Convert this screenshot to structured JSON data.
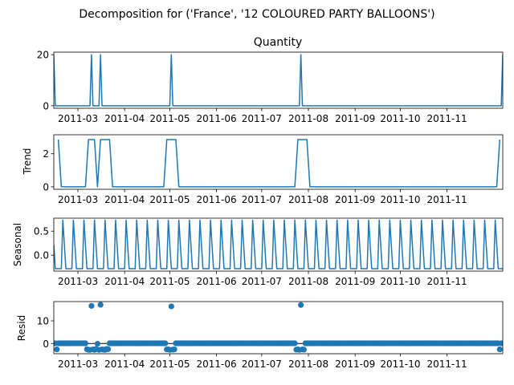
{
  "figure": {
    "suptitle": "Decomposition for ('France', '12 COLOURED PARTY BALLOONS')"
  },
  "colors": {
    "line": "#1f77b4",
    "marker": "#1f77b4",
    "axis": "#000000",
    "background": "#ffffff"
  },
  "chart_data": [
    {
      "type": "line",
      "title": "Quantity",
      "ylabel": "",
      "xlim": [
        "2011-02-13",
        "2011-12-08"
      ],
      "ylim": [
        -1,
        21
      ],
      "yticks": [
        0,
        20
      ],
      "xticks": [
        "2011-03",
        "2011-04",
        "2011-05",
        "2011-06",
        "2011-07",
        "2011-08",
        "2011-09",
        "2011-10",
        "2011-11"
      ],
      "series": [
        {
          "x": [
            "2011-02-13",
            "2011-02-14",
            "2011-03-09",
            "2011-03-10",
            "2011-03-11",
            "2011-03-15",
            "2011-03-16",
            "2011-03-17",
            "2011-05-01",
            "2011-05-02",
            "2011-05-03",
            "2011-07-26",
            "2011-07-27",
            "2011-07-28",
            "2011-12-07",
            "2011-12-08"
          ],
          "y": [
            20,
            0,
            0,
            20,
            0,
            0,
            20,
            0,
            0,
            20,
            0,
            0,
            20,
            0,
            0,
            20
          ]
        }
      ]
    },
    {
      "type": "line",
      "title": "",
      "ylabel": "Trend",
      "xlim": [
        "2011-02-13",
        "2011-12-08"
      ],
      "ylim": [
        -0.15,
        3.15
      ],
      "yticks": [
        0,
        2
      ],
      "xticks": [
        "2011-03",
        "2011-04",
        "2011-05",
        "2011-06",
        "2011-07",
        "2011-08",
        "2011-09",
        "2011-10",
        "2011-11"
      ],
      "series": [
        {
          "x": [
            "2011-02-16",
            "2011-02-18",
            "2011-03-06",
            "2011-03-08",
            "2011-03-12",
            "2011-03-14",
            "2011-03-16",
            "2011-03-22",
            "2011-03-24",
            "2011-04-27",
            "2011-04-29",
            "2011-05-05",
            "2011-05-07",
            "2011-07-23",
            "2011-07-25",
            "2011-07-31",
            "2011-08-02",
            "2011-12-04",
            "2011-12-06"
          ],
          "y": [
            2.86,
            0,
            0,
            2.86,
            2.86,
            0,
            2.86,
            2.86,
            0,
            0,
            2.86,
            2.86,
            0,
            0,
            2.86,
            2.86,
            0,
            0,
            2.86
          ]
        }
      ]
    },
    {
      "type": "line",
      "title": "",
      "ylabel": "Seasonal",
      "xlim": [
        "2011-02-13",
        "2011-12-08"
      ],
      "ylim": [
        -0.33,
        0.77
      ],
      "yticks": [
        0.0,
        0.5
      ],
      "xticks": [
        "2011-03",
        "2011-04",
        "2011-05",
        "2011-06",
        "2011-07",
        "2011-08",
        "2011-09",
        "2011-10",
        "2011-11"
      ],
      "period": 7,
      "weekly_pattern": [
        0.22,
        -0.28,
        -0.28,
        -0.28,
        -0.28,
        -0.28,
        0.73
      ]
    },
    {
      "type": "scatter",
      "title": "",
      "ylabel": "Resid",
      "xlim": [
        "2011-02-13",
        "2011-12-08"
      ],
      "ylim": [
        -4.5,
        18.5
      ],
      "yticks": [
        0,
        10
      ],
      "xticks": [
        "2011-03",
        "2011-04",
        "2011-05",
        "2011-06",
        "2011-07",
        "2011-08",
        "2011-09",
        "2011-10",
        "2011-11"
      ],
      "baseline_value": 0,
      "typical_resid": 0.1,
      "outliers": [
        {
          "x": "2011-03-10",
          "y": 16.6
        },
        {
          "x": "2011-03-16",
          "y": 17.1
        },
        {
          "x": "2011-05-02",
          "y": 16.4
        },
        {
          "x": "2011-07-27",
          "y": 17.0
        }
      ],
      "negative_points": [
        {
          "x": "2011-02-15",
          "y": -2.6
        },
        {
          "x": "2011-03-07",
          "y": -2.5
        },
        {
          "x": "2011-03-08",
          "y": -2.8
        },
        {
          "x": "2011-03-09",
          "y": -2.8
        },
        {
          "x": "2011-03-11",
          "y": -2.6
        },
        {
          "x": "2011-03-12",
          "y": -2.8
        },
        {
          "x": "2011-03-13",
          "y": -2.4
        },
        {
          "x": "2011-03-14",
          "y": -0.1
        },
        {
          "x": "2011-03-15",
          "y": -2.8
        },
        {
          "x": "2011-03-17",
          "y": -2.6
        },
        {
          "x": "2011-03-18",
          "y": -2.7
        },
        {
          "x": "2011-03-19",
          "y": -2.8
        },
        {
          "x": "2011-03-20",
          "y": -2.4
        },
        {
          "x": "2011-03-21",
          "y": -2.5
        },
        {
          "x": "2011-04-29",
          "y": -2.6
        },
        {
          "x": "2011-04-30",
          "y": -2.6
        },
        {
          "x": "2011-05-01",
          "y": -2.8
        },
        {
          "x": "2011-05-03",
          "y": -2.7
        },
        {
          "x": "2011-05-04",
          "y": -2.6
        },
        {
          "x": "2011-07-24",
          "y": -2.7
        },
        {
          "x": "2011-07-25",
          "y": -2.6
        },
        {
          "x": "2011-07-26",
          "y": -2.8
        },
        {
          "x": "2011-07-28",
          "y": -2.6
        },
        {
          "x": "2011-07-29",
          "y": -2.7
        },
        {
          "x": "2011-12-06",
          "y": -2.6
        }
      ]
    }
  ]
}
